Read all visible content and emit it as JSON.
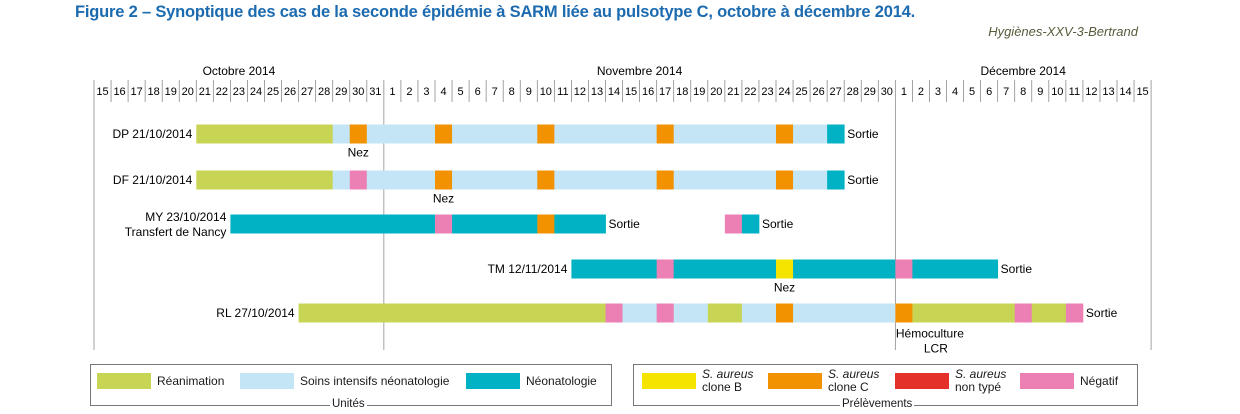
{
  "header": {
    "title": "Figure 2 – Synoptique des cas de la seconde épidémie à SARM liée au pulsotype C, octobre à décembre 2014.",
    "credit": "Hygiènes-XXV-3-Bertrand"
  },
  "chart_data": {
    "type": "timeline",
    "months": [
      {
        "name": "Octobre 2014",
        "days": [
          "15",
          "16",
          "17",
          "18",
          "19",
          "20",
          "21",
          "22",
          "23",
          "24",
          "25",
          "26",
          "27",
          "28",
          "29",
          "30",
          "31"
        ]
      },
      {
        "name": "Novembre 2014",
        "days": [
          "1",
          "2",
          "3",
          "4",
          "5",
          "6",
          "7",
          "8",
          "9",
          "10",
          "11",
          "12",
          "13",
          "14",
          "15",
          "16",
          "17",
          "18",
          "19",
          "20",
          "21",
          "22",
          "23",
          "24",
          "25",
          "26",
          "27",
          "28",
          "29",
          "30"
        ]
      },
      {
        "name": "Décembre 2014",
        "days": [
          "1",
          "2",
          "3",
          "4",
          "5",
          "6",
          "7",
          "8",
          "9",
          "10",
          "11",
          "12",
          "13",
          "14",
          "15"
        ]
      }
    ],
    "categories": {
      "reanimation": "#c8d454",
      "soins_intensifs": "#c3e5f6",
      "neonatologie": "#00b2c4",
      "clone_b": "#f4e400",
      "clone_c": "#f39200",
      "non_type": "#e4322b",
      "negatif": "#ec7fb3"
    },
    "rows": [
      {
        "label": "DP 21/10/2014",
        "segments": [
          {
            "start": 6,
            "end": 14,
            "cat": "reanimation"
          },
          {
            "start": 14,
            "end": 15,
            "cat": "soins_intensifs"
          },
          {
            "start": 15,
            "end": 16,
            "cat": "clone_c"
          },
          {
            "start": 16,
            "end": 20,
            "cat": "soins_intensifs"
          },
          {
            "start": 20,
            "end": 21,
            "cat": "clone_c"
          },
          {
            "start": 21,
            "end": 26,
            "cat": "soins_intensifs"
          },
          {
            "start": 26,
            "end": 27,
            "cat": "clone_c"
          },
          {
            "start": 27,
            "end": 33,
            "cat": "soins_intensifs"
          },
          {
            "start": 33,
            "end": 34,
            "cat": "clone_c"
          },
          {
            "start": 34,
            "end": 40,
            "cat": "soins_intensifs"
          },
          {
            "start": 40,
            "end": 41,
            "cat": "clone_c"
          },
          {
            "start": 41,
            "end": 43,
            "cat": "soins_intensifs"
          },
          {
            "start": 43,
            "end": 44,
            "cat": "neonatologie"
          }
        ],
        "end_label": "Sortie",
        "annotations": [
          {
            "day": 15,
            "text": "Nez"
          }
        ]
      },
      {
        "label": "DF 21/10/2014",
        "segments": [
          {
            "start": 6,
            "end": 14,
            "cat": "reanimation"
          },
          {
            "start": 14,
            "end": 15,
            "cat": "soins_intensifs"
          },
          {
            "start": 15,
            "end": 16,
            "cat": "negatif"
          },
          {
            "start": 16,
            "end": 20,
            "cat": "soins_intensifs"
          },
          {
            "start": 20,
            "end": 21,
            "cat": "clone_c"
          },
          {
            "start": 21,
            "end": 26,
            "cat": "soins_intensifs"
          },
          {
            "start": 26,
            "end": 27,
            "cat": "clone_c"
          },
          {
            "start": 27,
            "end": 33,
            "cat": "soins_intensifs"
          },
          {
            "start": 33,
            "end": 34,
            "cat": "clone_c"
          },
          {
            "start": 34,
            "end": 40,
            "cat": "soins_intensifs"
          },
          {
            "start": 40,
            "end": 41,
            "cat": "clone_c"
          },
          {
            "start": 41,
            "end": 43,
            "cat": "soins_intensifs"
          },
          {
            "start": 43,
            "end": 44,
            "cat": "neonatologie"
          }
        ],
        "end_label": "Sortie",
        "annotations": [
          {
            "day": 20,
            "text": "Nez"
          }
        ]
      },
      {
        "label": [
          "MY 23/10/2014",
          "Transfert de Nancy"
        ],
        "segments": [
          {
            "start": 8,
            "end": 20,
            "cat": "neonatologie"
          },
          {
            "start": 20,
            "end": 21,
            "cat": "negatif"
          },
          {
            "start": 21,
            "end": 26,
            "cat": "neonatologie"
          },
          {
            "start": 26,
            "end": 27,
            "cat": "clone_c"
          },
          {
            "start": 27,
            "end": 30,
            "cat": "neonatologie"
          },
          {
            "start": 37,
            "end": 38,
            "cat": "negatif"
          },
          {
            "start": 38,
            "end": 39,
            "cat": "neonatologie"
          }
        ],
        "end_labels": [
          {
            "after": 30,
            "text": "Sortie"
          },
          {
            "after": 39,
            "text": "Sortie"
          }
        ],
        "annotations": []
      },
      {
        "label": "TM 12/11/2014",
        "segments": [
          {
            "start": 28,
            "end": 33,
            "cat": "neonatologie"
          },
          {
            "start": 33,
            "end": 34,
            "cat": "negatif"
          },
          {
            "start": 34,
            "end": 40,
            "cat": "neonatologie"
          },
          {
            "start": 40,
            "end": 41,
            "cat": "clone_b"
          },
          {
            "start": 41,
            "end": 47,
            "cat": "neonatologie"
          },
          {
            "start": 47,
            "end": 48,
            "cat": "negatif"
          },
          {
            "start": 48,
            "end": 53,
            "cat": "neonatologie"
          }
        ],
        "end_label": "Sortie",
        "annotations": [
          {
            "day": 40,
            "text": "Nez"
          }
        ]
      },
      {
        "label": "RL 27/10/2014",
        "segments": [
          {
            "start": 12,
            "end": 30,
            "cat": "reanimation"
          },
          {
            "start": 30,
            "end": 31,
            "cat": "negatif"
          },
          {
            "start": 31,
            "end": 33,
            "cat": "soins_intensifs"
          },
          {
            "start": 33,
            "end": 34,
            "cat": "negatif"
          },
          {
            "start": 34,
            "end": 36,
            "cat": "soins_intensifs"
          },
          {
            "start": 36,
            "end": 38,
            "cat": "reanimation"
          },
          {
            "start": 38,
            "end": 40,
            "cat": "soins_intensifs"
          },
          {
            "start": 40,
            "end": 41,
            "cat": "clone_c"
          },
          {
            "start": 41,
            "end": 47,
            "cat": "soins_intensifs"
          },
          {
            "start": 47,
            "end": 48,
            "cat": "clone_c"
          },
          {
            "start": 48,
            "end": 54,
            "cat": "reanimation"
          },
          {
            "start": 54,
            "end": 55,
            "cat": "negatif"
          },
          {
            "start": 55,
            "end": 57,
            "cat": "reanimation"
          },
          {
            "start": 57,
            "end": 58,
            "cat": "negatif"
          }
        ],
        "end_label": "Sortie",
        "annotations": [
          {
            "day": 47,
            "text": [
              "Hémoculture",
              "LCR"
            ]
          }
        ]
      }
    ]
  },
  "legend_units": {
    "caption": "Unités",
    "items": [
      {
        "cat": "reanimation",
        "text": "Réanimation"
      },
      {
        "cat": "soins_intensifs",
        "text": "Soins intensifs néonatologie"
      },
      {
        "cat": "neonatologie",
        "text": "Néonatologie"
      }
    ]
  },
  "legend_samples": {
    "caption": "Prélèvements",
    "items": [
      {
        "cat": "clone_b",
        "italic": "S. aureus",
        "text": "clone B"
      },
      {
        "cat": "clone_c",
        "italic": "S. aureus",
        "text": "clone C"
      },
      {
        "cat": "non_type",
        "italic": "S. aureus",
        "text": "non typé"
      },
      {
        "cat": "negatif",
        "italic": "",
        "text": "Négatif"
      }
    ]
  }
}
